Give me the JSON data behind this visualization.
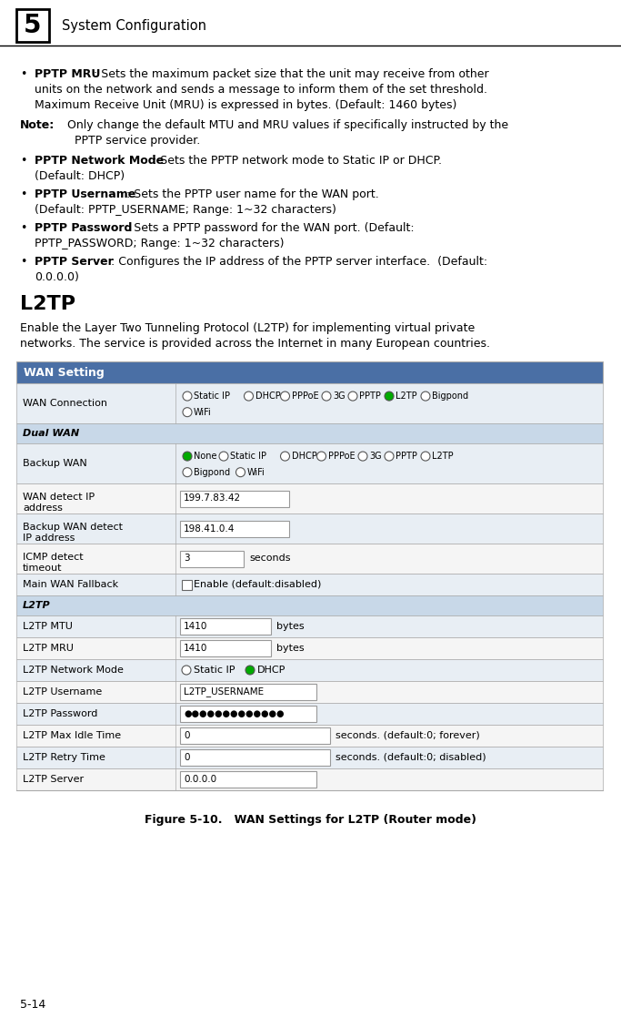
{
  "page_width": 6.83,
  "page_height": 11.28,
  "bg_color": "#ffffff",
  "header_num": "5",
  "header_text": "System Configuration",
  "table_header": "WAN Setting",
  "table_header_bg": "#4a6fa5",
  "table_header_color": "#ffffff",
  "table_row_alt1": "#e8eef4",
  "table_row_alt2": "#f5f5f5",
  "table_section_bg": "#c8d8e8",
  "table_border": "#aaaaaa",
  "figure_caption": "Figure 5-10.   WAN Settings for L2TP (Router mode)",
  "page_num": "5-14",
  "font_size_body": 9.0,
  "font_size_table": 8.0
}
